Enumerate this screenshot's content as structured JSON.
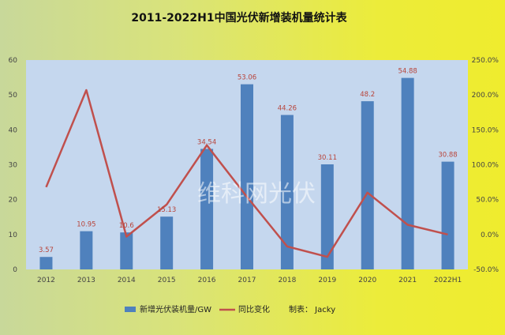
{
  "chart_data": {
    "type": "bar",
    "title": "2011-2022H1中国光伏新增装机量统计表",
    "categories": [
      "2012",
      "2013",
      "2014",
      "2015",
      "2016",
      "2017",
      "2018",
      "2019",
      "2020",
      "2021",
      "2022H1"
    ],
    "series": [
      {
        "name": "新增光伏装机量/GW",
        "type": "bar",
        "axis": "left",
        "color": "#4f81bd",
        "values": [
          3.57,
          10.95,
          10.6,
          15.13,
          34.54,
          53.06,
          44.26,
          30.11,
          48.2,
          54.88,
          30.88
        ],
        "labels": [
          "3.57",
          "10.95",
          "10.6",
          "15.13",
          "34.54",
          "53.06",
          "44.26",
          "30.11",
          "48.2",
          "54.88",
          "30.88"
        ]
      },
      {
        "name": "同比变化",
        "type": "line",
        "axis": "right",
        "color": "#c0504d",
        "values": [
          68,
          207,
          -3,
          43,
          128,
          54,
          -17,
          -32,
          60,
          14,
          0
        ]
      }
    ],
    "left_axis": {
      "min": 0,
      "max": 60,
      "ticks": [
        "0",
        "10",
        "20",
        "30",
        "40",
        "50",
        "60"
      ]
    },
    "right_axis": {
      "min": -50,
      "max": 250,
      "ticks": [
        "-50.0%",
        "0.0%",
        "50.0%",
        "100.0%",
        "150.0%",
        "200.0%",
        "250.0%"
      ]
    },
    "grid": false,
    "legend_position": "bottom",
    "credit": "制表： Jacky",
    "watermark": "维科网光伏"
  }
}
